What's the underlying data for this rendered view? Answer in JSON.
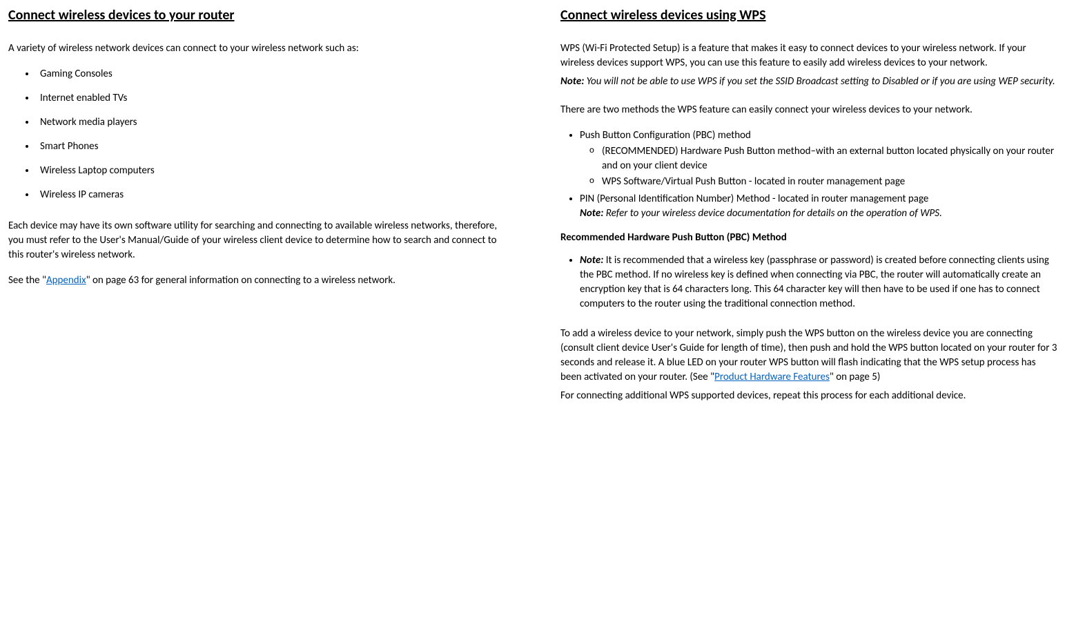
{
  "left": {
    "title": "Connect wireless devices to your router",
    "intro": "A variety of wireless network devices can connect to your wireless network such as:",
    "devices": [
      "Gaming Consoles",
      "Internet enabled TVs",
      "Network media players",
      "Smart Phones",
      "Wireless Laptop computers",
      "Wireless IP cameras"
    ],
    "para2": "Each device may have its own software utility for searching and connecting to available wireless networks, therefore, you must refer to the User's Manual/Guide of your wireless client device to determine how to search and connect to this router's wireless network.",
    "appendix_pre": "See the \"",
    "appendix_link": "Appendix",
    "appendix_post": "\" on page 63 for general information on connecting to a wireless network."
  },
  "right": {
    "title": "Connect wireless devices using WPS",
    "intro": "WPS (Wi-Fi Protected Setup) is a feature that makes it easy to connect devices to your wireless network. If your wireless devices support WPS, you can use this feature to easily add wireless devices to your network.",
    "note1_label": "Note:",
    "note1_body": " You will not be able to use WPS if you set the SSID Broadcast setting to Disabled or if you are using WEP security.",
    "methods_intro": "There are two methods the WPS feature can easily connect your wireless devices to your network.",
    "pbc_label": "Push Button Configuration (PBC) method",
    "pbc_sub1": "(RECOMMENDED) Hardware Push Button method–with an external button located physically on your router and on your client device",
    "pbc_sub2": "WPS Software/Virtual Push Button - located in router management page",
    "pin_label": "PIN (Personal Identification Number) Method - located in router management page",
    "note2_label": "Note:",
    "note2_body": " Refer to your wireless device documentation for details on the operation of WPS.",
    "rec_heading": "Recommended Hardware Push Button (PBC) Method",
    "rec_note_label": "Note:",
    "rec_note_body": " It is recommended that a wireless key (passphrase or password) is created before connecting clients using the PBC method. If no wireless key is defined when connecting via PBC, the router will automatically create an encryption key that is 64 characters long. This 64 character key will then have to be used if one has to connect computers to the router using the traditional connection method.",
    "howto_pre": "To add a wireless device to your network, simply push the WPS button on the wireless device you are connecting (consult client device User's Guide for length of time), then push and hold the WPS button located on your router for 3 seconds and release it. A blue LED on your router WPS button will flash indicating that the WPS setup process has been activated on your router. (See \"",
    "howto_link": "Product Hardware Features",
    "howto_post": "\" on page 5)",
    "additional": "For connecting additional WPS supported devices, repeat this process for each additional device."
  }
}
